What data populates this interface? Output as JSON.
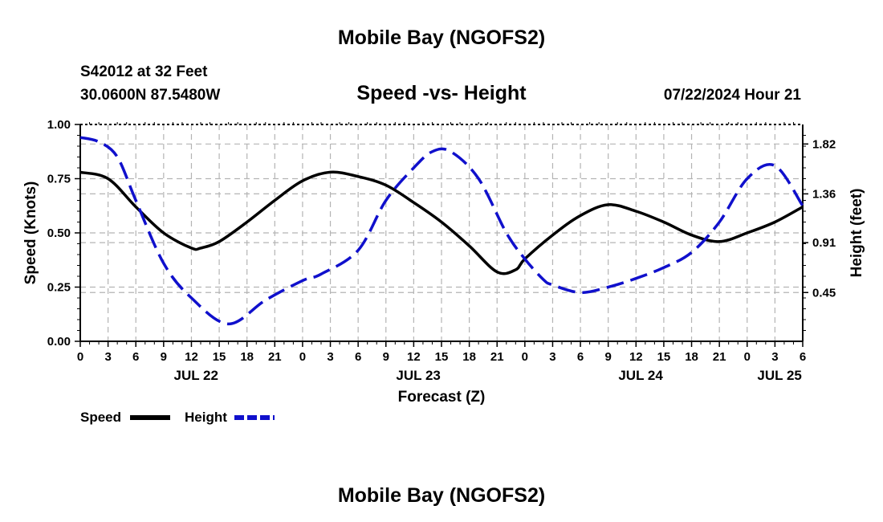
{
  "title_top": "Mobile Bay (NGOFS2)",
  "title_bottom": "Mobile Bay (NGOFS2)",
  "station": {
    "name_depth": "S42012 at 32 Feet",
    "coords": "30.0600N  87.5480W"
  },
  "run_time": "07/22/2024 Hour 21",
  "chart_data": {
    "type": "line",
    "title": "Speed -vs- Height",
    "xlabel": "Forecast (Z)",
    "ylabel_left": "Speed (Knots)",
    "ylabel_right": "Height (feet)",
    "x_range_hours": [
      0,
      78
    ],
    "x_tick_labels": [
      "0",
      "3",
      "6",
      "9",
      "12",
      "15",
      "18",
      "21",
      "0",
      "3",
      "6",
      "9",
      "12",
      "15",
      "18",
      "21",
      "0",
      "3",
      "6",
      "9",
      "12",
      "15",
      "18",
      "21",
      "0",
      "3",
      "6"
    ],
    "day_labels": [
      {
        "label": "JUL 22",
        "hour": 12.5
      },
      {
        "label": "JUL 23",
        "hour": 36.5
      },
      {
        "label": "JUL 24",
        "hour": 60.5
      },
      {
        "label": "JUL 25",
        "hour": 75.5
      }
    ],
    "ylim_left": [
      0,
      1
    ],
    "yticks_left": [
      "0.00",
      "0.25",
      "0.50",
      "0.75",
      "1.00"
    ],
    "ylim_right": [
      0,
      2.0
    ],
    "yticks_right": [
      {
        "value": 0.45,
        "label": "0.45"
      },
      {
        "value": 0.91,
        "label": "0.91"
      },
      {
        "value": 1.36,
        "label": "1.36"
      },
      {
        "value": 1.82,
        "label": "1.82"
      }
    ],
    "grid": true,
    "series": [
      {
        "name": "Speed",
        "axis": "left",
        "color": "#000000",
        "style": "solid",
        "hours": [
          0,
          3,
          6,
          9,
          12,
          13,
          15,
          18,
          21,
          24,
          27,
          30,
          33,
          36,
          39,
          42,
          45,
          47,
          48,
          51,
          54,
          57,
          60,
          63,
          66,
          69,
          72,
          75,
          78
        ],
        "values": [
          0.78,
          0.75,
          0.62,
          0.5,
          0.43,
          0.43,
          0.46,
          0.55,
          0.65,
          0.74,
          0.78,
          0.76,
          0.72,
          0.64,
          0.55,
          0.44,
          0.32,
          0.33,
          0.38,
          0.49,
          0.58,
          0.63,
          0.6,
          0.55,
          0.49,
          0.46,
          0.5,
          0.55,
          0.62
        ]
      },
      {
        "name": "Height",
        "axis": "right",
        "color": "#1010cc",
        "style": "dashed",
        "hours": [
          0,
          2,
          4,
          6,
          9,
          12,
          16,
          20,
          24,
          26,
          30,
          33,
          36,
          38,
          40,
          43,
          46,
          48,
          50,
          51,
          54,
          57,
          60,
          63,
          66,
          69,
          72,
          75,
          78
        ],
        "values": [
          1.88,
          1.84,
          1.7,
          1.3,
          0.72,
          0.4,
          0.16,
          0.38,
          0.56,
          0.62,
          0.84,
          1.3,
          1.6,
          1.75,
          1.75,
          1.5,
          1.0,
          0.76,
          0.57,
          0.52,
          0.45,
          0.5,
          0.58,
          0.68,
          0.82,
          1.1,
          1.5,
          1.62,
          1.25
        ]
      }
    ],
    "legend": [
      {
        "label": "Speed",
        "color": "#000000",
        "style": "solid"
      },
      {
        "label": "Height",
        "color": "#1010cc",
        "style": "dashed"
      }
    ],
    "legend_position": "bottom-left"
  }
}
